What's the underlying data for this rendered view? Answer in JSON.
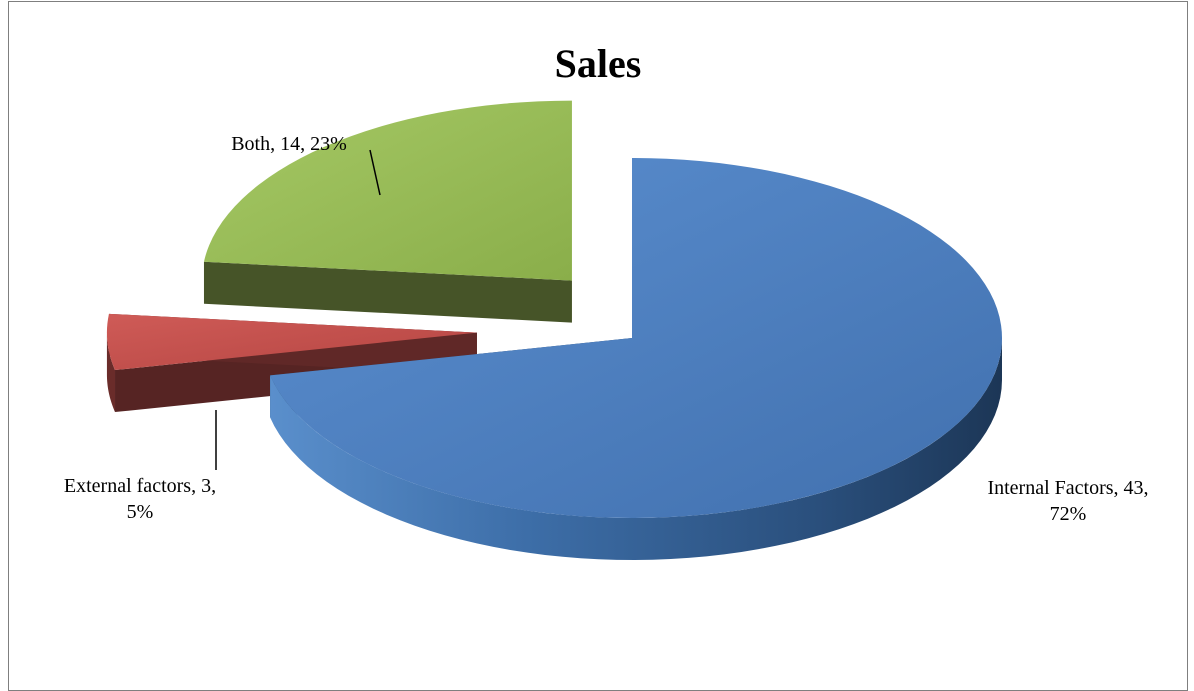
{
  "chart_data": {
    "type": "pie",
    "title": "Sales",
    "slices": [
      {
        "label": "Internal Factors",
        "value": 43,
        "percent": "72%",
        "color": "#4f81bd"
      },
      {
        "label": "External factors",
        "value": 3,
        "percent": "5%",
        "color": "#c0504d"
      },
      {
        "label": "Both",
        "value": 14,
        "percent": "23%",
        "color": "#9bbb59"
      }
    ],
    "exploded": true,
    "three_d": true,
    "legend": "none",
    "data_labels": [
      {
        "line1": "Internal Factors, 43,",
        "line2": "72%"
      },
      {
        "line1": "External factors, 3,",
        "line2": "5%"
      },
      {
        "line1": "Both, 14, 23%",
        "line2": ""
      }
    ]
  }
}
